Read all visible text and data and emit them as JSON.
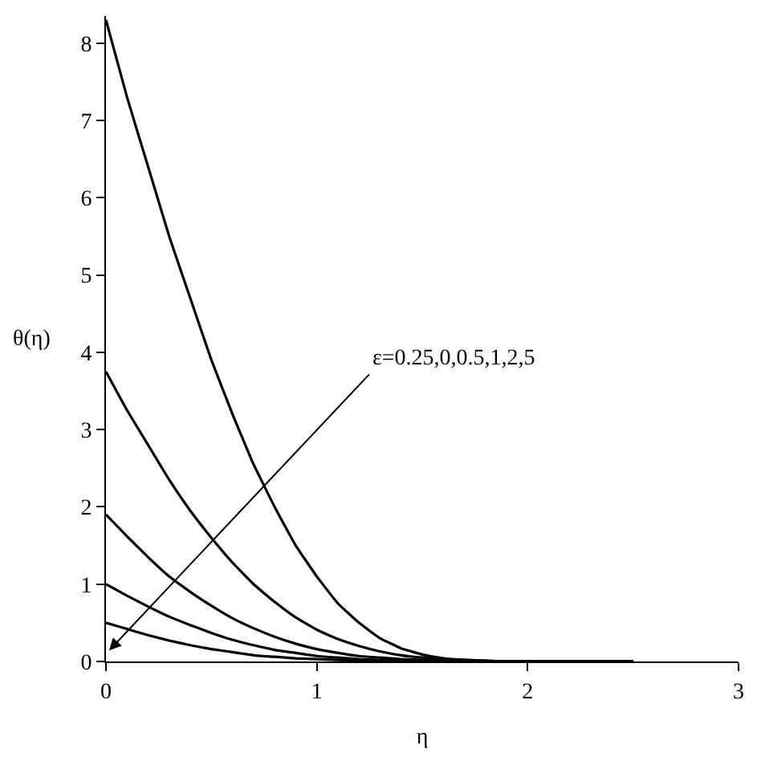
{
  "chart_data": {
    "type": "line",
    "xlabel": "η",
    "ylabel": "θ(η)",
    "x": [
      0,
      0.1,
      0.2,
      0.3,
      0.4,
      0.5,
      0.6,
      0.7,
      0.8,
      0.9,
      1.0,
      1.1,
      1.2,
      1.3,
      1.4,
      1.5,
      1.6,
      1.7,
      1.8,
      1.9,
      2.0,
      2.25,
      2.5
    ],
    "series": [
      {
        "color": "#000000",
        "values": [
          8.3,
          7.3,
          6.4,
          5.5,
          4.7,
          3.9,
          3.2,
          2.55,
          2.0,
          1.5,
          1.1,
          0.75,
          0.5,
          0.3,
          0.17,
          0.09,
          0.04,
          0.02,
          0.01,
          0,
          0,
          0,
          0
        ]
      },
      {
        "color": "#000000",
        "values": [
          3.75,
          3.25,
          2.8,
          2.35,
          1.95,
          1.6,
          1.28,
          1.0,
          0.77,
          0.57,
          0.41,
          0.29,
          0.2,
          0.13,
          0.08,
          0.05,
          0.03,
          0.02,
          0.01,
          0,
          0,
          0,
          0
        ]
      },
      {
        "color": "#000000",
        "values": [
          1.9,
          1.62,
          1.35,
          1.1,
          0.9,
          0.72,
          0.56,
          0.43,
          0.32,
          0.23,
          0.16,
          0.11,
          0.07,
          0.05,
          0.03,
          0.02,
          0.01,
          0,
          0,
          0,
          0,
          0,
          0
        ]
      },
      {
        "color": "#000000",
        "values": [
          1.0,
          0.85,
          0.71,
          0.58,
          0.47,
          0.37,
          0.28,
          0.21,
          0.15,
          0.11,
          0.07,
          0.05,
          0.03,
          0.02,
          0.01,
          0.01,
          0,
          0,
          0,
          0,
          0,
          0,
          0
        ]
      },
      {
        "color": "#000000",
        "values": [
          0.5,
          0.42,
          0.34,
          0.27,
          0.21,
          0.16,
          0.12,
          0.08,
          0.06,
          0.04,
          0.03,
          0.02,
          0.01,
          0.01,
          0,
          0,
          0,
          0,
          0,
          0,
          0,
          0,
          0
        ]
      }
    ],
    "annotations": [
      "ε=0.25,0,0.5,1,2,5"
    ],
    "xlim": [
      0,
      3
    ],
    "xticks": [
      0,
      1,
      2,
      3
    ],
    "ylim": [
      0,
      8.35
    ],
    "yticks": [
      0,
      1,
      2,
      3,
      4,
      5,
      6,
      7,
      8
    ],
    "marker": "none",
    "line_style": "solid"
  }
}
